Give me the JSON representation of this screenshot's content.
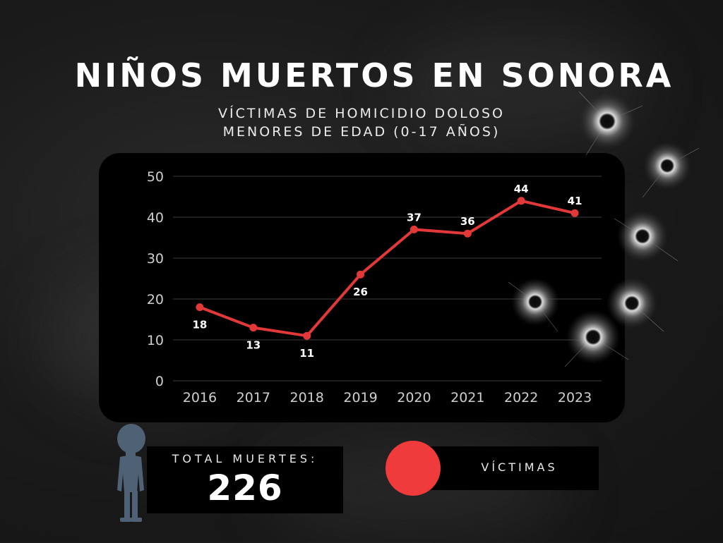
{
  "title": "NIÑOS MUERTOS EN SONORA",
  "subtitle_line1": "VÍCTIMAS DE HOMICIDIO DOLOSO",
  "subtitle_line2": "MENORES DE EDAD (0-17 AÑOS)",
  "total_label": "TOTAL MUERTES:",
  "total_value": "226",
  "legend_label": "VÍCTIMAS",
  "colors": {
    "background": "#1b1b1b",
    "panel": "#000000",
    "series_line": "#e23838",
    "legend_dot": "#ef3b3b",
    "child_silhouette": "#4f6275"
  },
  "icons": [
    "child-silhouette-icon",
    "bullet-hole-icon"
  ],
  "chart_data": {
    "type": "line",
    "x": [
      "2016",
      "2017",
      "2018",
      "2019",
      "2020",
      "2021",
      "2022",
      "2023"
    ],
    "series": [
      {
        "name": "VÍCTIMAS",
        "values": [
          18,
          13,
          11,
          26,
          37,
          36,
          44,
          41
        ]
      }
    ],
    "yticks": [
      "0",
      "10",
      "20",
      "30",
      "40",
      "50"
    ],
    "ylim": [
      0,
      50
    ],
    "grid": true,
    "data_labels": [
      "18",
      "13",
      "11",
      "26",
      "37",
      "36",
      "44",
      "41"
    ],
    "label_position": [
      "below",
      "below",
      "below",
      "below",
      "above",
      "above",
      "above",
      "above"
    ],
    "legend": "bottom"
  }
}
